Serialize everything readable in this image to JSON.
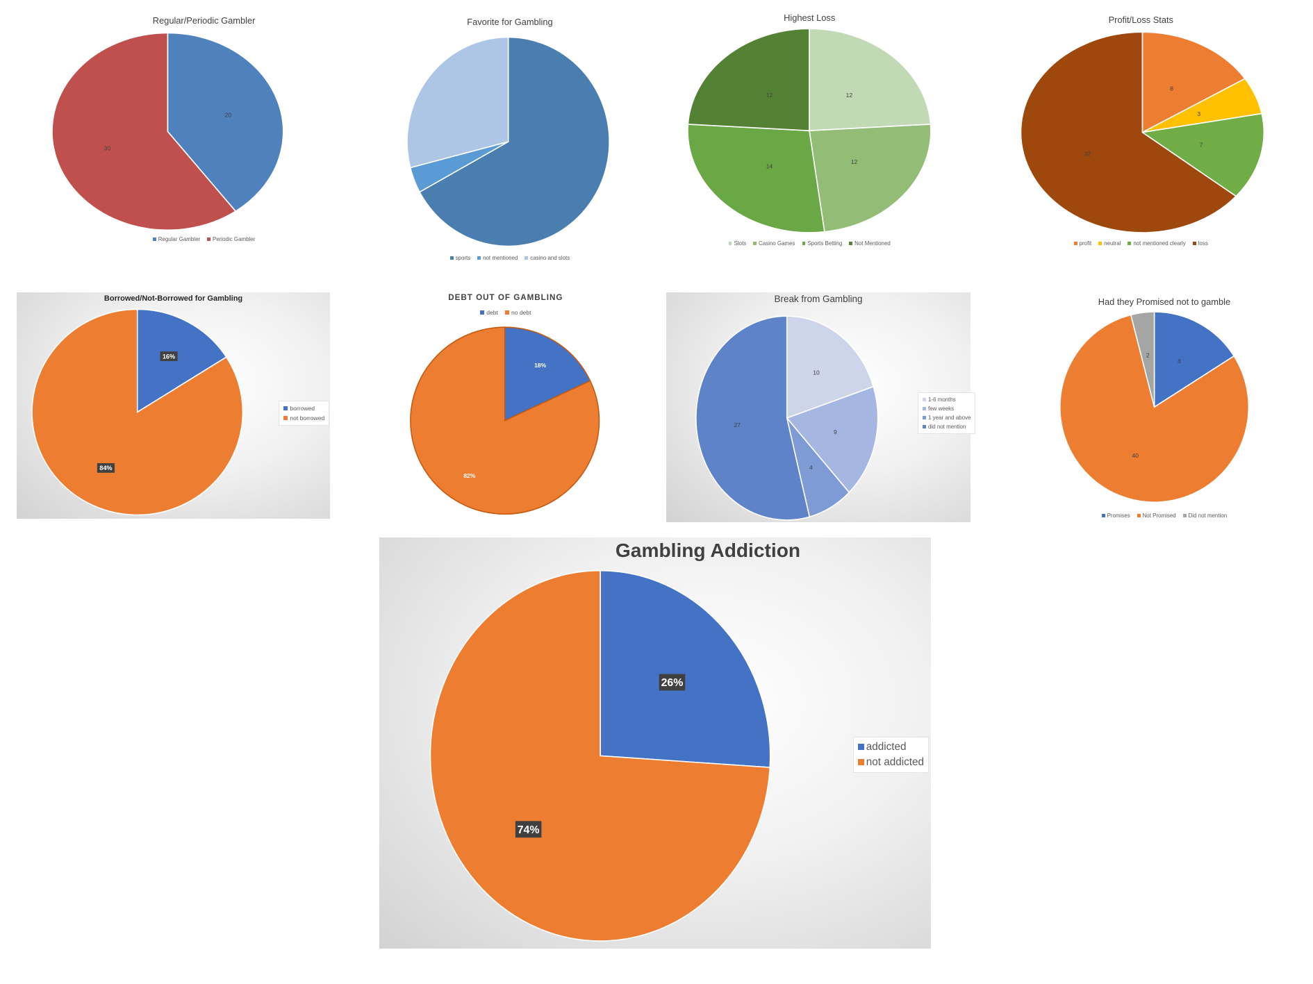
{
  "chart_data": [
    {
      "type": "pie",
      "title": "Regular/Periodic Gambler",
      "labels": [
        "Regular Gambler",
        "Periodic Gambler"
      ],
      "values": [
        20,
        30
      ],
      "value_labels": [
        "20",
        "30"
      ],
      "colors": [
        "#4f81bd",
        "#c0504d"
      ],
      "legend": "bottom"
    },
    {
      "type": "pie",
      "title": "Favorite for Gambling",
      "labels": [
        "sports",
        "not mentioned",
        "casino and slots"
      ],
      "values": [
        67,
        4,
        29
      ],
      "value_labels": [],
      "colors": [
        "#4a7eb0",
        "#5b9bd5",
        "#adc6e5"
      ],
      "legend": "bottom"
    },
    {
      "type": "pie",
      "title": "Highest Loss",
      "labels": [
        "Slots",
        "Casino Games",
        "Sports Betting",
        "Not Mentioned"
      ],
      "values": [
        12,
        12,
        14,
        12
      ],
      "value_labels": [
        "12",
        "12",
        "14",
        "12"
      ],
      "colors": [
        "#c1d9b5",
        "#93bd77",
        "#6aa745",
        "#548235"
      ],
      "legend": "bottom"
    },
    {
      "type": "pie",
      "title": "Profit/Loss Stats",
      "labels": [
        "profit",
        "neutral",
        "not mentioned clearly",
        "loss"
      ],
      "values": [
        8,
        3,
        7,
        32
      ],
      "value_labels": [
        "8",
        "3",
        "7",
        "32"
      ],
      "colors": [
        "#ed7d31",
        "#ffc000",
        "#70ad47",
        "#9e480e"
      ],
      "legend": "bottom"
    },
    {
      "type": "pie",
      "title": "Borrowed/Not-Borrowed for Gambling",
      "labels": [
        "borrowed",
        "not borrowed"
      ],
      "values": [
        16,
        84
      ],
      "value_labels": [
        "16%",
        "84%"
      ],
      "colors": [
        "#4472c4",
        "#ed7d31"
      ],
      "legend": "right"
    },
    {
      "type": "pie",
      "title": "DEBT OUT OF GAMBLING",
      "labels": [
        "debt",
        "no debt"
      ],
      "values": [
        18,
        82
      ],
      "value_labels": [
        "18%",
        "82%"
      ],
      "colors": [
        "#4472c4",
        "#ed7d31"
      ],
      "legend": "top"
    },
    {
      "type": "pie",
      "title": "Break from Gambling",
      "labels": [
        "1-6 months",
        "few weeks",
        "1 year and above",
        "did not mention"
      ],
      "values": [
        10,
        9,
        4,
        27
      ],
      "value_labels": [
        "10",
        "9",
        "4",
        "27"
      ],
      "colors": [
        "#cdd5eb",
        "#a4b6e1",
        "#7f9bd6",
        "#5f83c9"
      ],
      "legend": "right"
    },
    {
      "type": "pie",
      "title": "Had they Promised not to gamble",
      "labels": [
        "Promises",
        "Not Promised",
        "Did not mention"
      ],
      "values": [
        8,
        40,
        2
      ],
      "value_labels": [
        "8",
        "40",
        "2"
      ],
      "colors": [
        "#4472c4",
        "#ed7d31",
        "#a5a5a5"
      ],
      "legend": "bottom"
    },
    {
      "type": "pie",
      "title": "Gambling Addiction",
      "labels": [
        "addicted",
        "not addicted"
      ],
      "values": [
        26,
        74
      ],
      "value_labels": [
        "26%",
        "74%"
      ],
      "colors": [
        "#4472c4",
        "#ed7d31"
      ],
      "legend": "right"
    }
  ]
}
